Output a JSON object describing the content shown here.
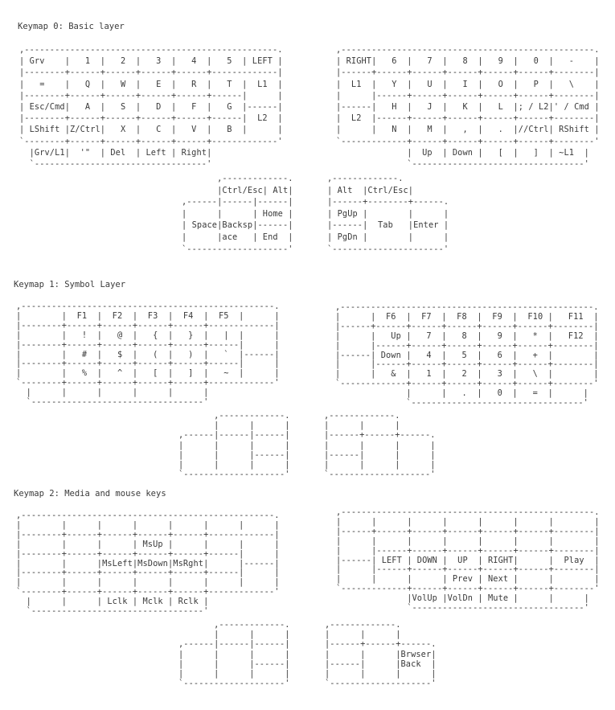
{
  "keymaps": [
    {
      "title": "Keymap 0: Basic layer",
      "left_hand": ",--------------------------------------------------.\n| Grv    |   1  |   2  |   3  |   4  |   5  | LEFT |\n|--------+------+------+------+------+-------------|\n|   =    |   Q  |   W  |   E  |   R  |   T  |  L1  |\n|--------+------+------+------+------+------|      |\n| Esc/Cmd|   A  |   S  |   D  |   F  |   G  |------|\n|--------+------+------+------+------+------|  L2  |\n| LShift |Z/Ctrl|   X  |   C  |   V  |   B  |      |\n`--------+------+------+------+------+-------------'\n  |Grv/L1|  '\"  | Del  | Left | Right|\n  `----------------------------------'",
      "right_hand": ",--------------------------------------------------.\n| RIGHT|   6  |   7  |   8  |   9  |   0  |   -    |\n|------+------+------+------+------+------+--------|\n|  L1  |   Y  |   U  |   I  |   O  |   P  |   \\    |\n|      |------+------+------+------+------+--------|\n|------|   H  |   J  |   K  |   L  |; / L2|' / Cmd |\n|  L2  |------+------+------+------+------+--------|\n|      |   N  |   M  |   ,  |   .  |//Ctrl| RShift |\n`-------------+------+------+------+------+--------'\n              |  Up  | Down |   [  |   ]  | ~L1  |\n              `----------------------------------'",
      "left_thumb": "       ,-------------.\n       |Ctrl/Esc| Alt|\n,------|------|------|\n|      |      | Home |\n| Space|Backsp|------|\n|      |ace   | End  |\n`--------------------'",
      "right_thumb": ",-------------.\n| Alt  |Ctrl/Esc|\n|------+--------+------.\n| PgUp |        |      |\n|------|  Tab   |Enter |\n| PgDn |        |      |\n`----------------------'"
    },
    {
      "title": "Keymap 1: Symbol Layer",
      "left_hand": ",--------------------------------------------------.\n|        |  F1  |  F2  |  F3  |  F4  |  F5  |      |\n|--------+------+------+------+------+-------------|\n|        |   !  |   @  |   {  |   }  |   |  |      |\n|--------+------+------+------+------+------|      |\n|        |   #  |   $  |   (  |   )  |   `  |------|\n|--------+------+------+------+------+------|      |\n|        |   %  |   ^  |   [  |   ]  |   ~  |      |\n`--------+------+------+------+------+-------------'\n  |      |      |      |      |      |\n  `----------------------------------'",
      "right_hand": ",--------------------------------------------------.\n|      |  F6  |  F7  |  F8  |  F9  |  F10 |   F11  |\n|------+------+------+------+------+------+--------|\n|      |   Up |   7  |   8  |   9  |   *  |   F12  |\n|      |------+------+------+------+------+--------|\n|------| Down |   4  |   5  |   6  |   +  |        |\n|      |------+------+------+------+------+--------|\n|      |   &  |   1  |   2  |   3  |   \\  |        |\n`-------------+------+------+------+------+--------'\n              |      |   .  |   0  |   =  |      |\n              `----------------------------------'",
      "left_thumb": "       ,-------------.\n       |      |      |\n,------|------|------|\n|      |      |      |\n|      |      |------|\n|      |      |      |\n`--------------------'",
      "right_thumb": ",-------------.\n|      |      |\n|------+------+------.\n|      |      |      |\n|------|      |      |\n|      |      |      |\n`--------------------'"
    },
    {
      "title": "Keymap 2: Media and mouse keys",
      "left_hand": ",--------------------------------------------------.\n|        |      |      |      |      |      |      |\n|--------+------+------+------+------+-------------|\n|        |      |      | MsUp |      |      |      |\n|--------+------+------+------+------+------|      |\n|        |      |MsLeft|MsDown|MsRght|      |------|\n|--------+------+------+------+------+------|      |\n|        |      |      |      |      |      |      |\n`--------+------+------+------+------+-------------'\n  |      |      | Lclk | Mclk | Rclk |\n  `----------------------------------'",
      "right_hand": ",--------------------------------------------------.\n|      |      |      |      |      |      |        |\n|------+------+------+------+------+------+--------|\n|      |      |      |      |      |      |        |\n|      |------+------+------+------+------+--------|\n|------| LEFT | DOWN |  UP  | RIGHT|      |  Play  |\n|      |------+------+------+------+------+--------|\n|      |      |      | Prev | Next |      |        |\n`-------------+------+------+------+------+--------'\n              |VolUp |VolDn | Mute |      |      |\n              `----------------------------------'",
      "left_thumb": "       ,-------------.\n       |      |      |\n,------|------|------|\n|      |      |      |\n|      |      |------|\n|      |      |      |\n`--------------------'",
      "right_thumb": ",-------------.\n|      |      |\n|------+------+------.\n|      |      |Brwser|\n|------|      |Back  |\n|      |      |      |\n`--------------------'"
    }
  ]
}
